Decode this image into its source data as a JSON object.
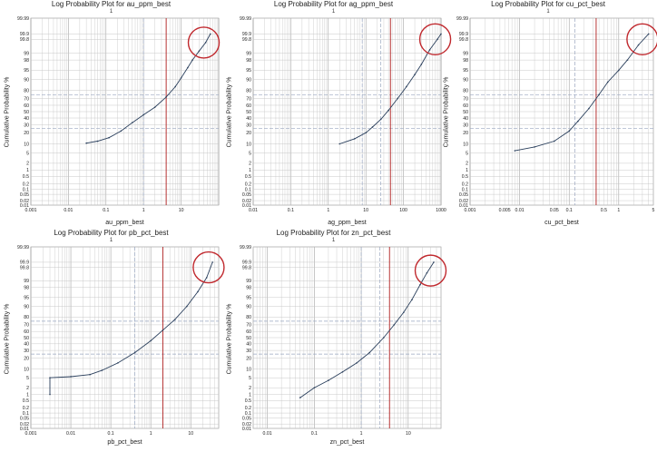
{
  "chart_data": [
    {
      "type": "line",
      "title": "Log Probability Plot for au_ppm_best",
      "subtitle": "1",
      "xlabel": "au_ppm_best",
      "ylabel": "Cumulative Probability %",
      "x_scale": "log",
      "y_scale": "probability",
      "xlim": [
        0.001,
        100
      ],
      "ylim": [
        0.01,
        99.99
      ],
      "x_ticks": [
        "0.001",
        "0.01",
        "0.1",
        "1",
        "10"
      ],
      "y_ticks": [
        "0.01",
        "0.02",
        "0.05",
        "0.1",
        "0.2",
        "0.5",
        "1",
        "2",
        "5",
        "10",
        "20",
        "30",
        "40",
        "50",
        "60",
        "70",
        "80",
        "90",
        "95",
        "98",
        "99",
        "99.8",
        "99.9",
        "99.99"
      ],
      "grid": true,
      "series": [
        {
          "color": "#2a3f5c",
          "points": [
            [
              0.03,
              10.5
            ],
            [
              0.06,
              12
            ],
            [
              0.12,
              15
            ],
            [
              0.25,
              22
            ],
            [
              0.5,
              33
            ],
            [
              1,
              45
            ],
            [
              2,
              57
            ],
            [
              4,
              72
            ],
            [
              7,
              84
            ],
            [
              10,
              91
            ],
            [
              15,
              96
            ],
            [
              20,
              98
            ],
            [
              30,
              99.2
            ],
            [
              45,
              99.7
            ],
            [
              60,
              99.9
            ]
          ]
        }
      ],
      "reference_lines": [
        {
          "orientation": "horizontal",
          "value": 25,
          "style": "dashed",
          "color": "#9aa7c0"
        },
        {
          "orientation": "horizontal",
          "value": 75,
          "style": "dashed",
          "color": "#9aa7c0"
        },
        {
          "orientation": "vertical",
          "value": 1,
          "style": "dashed",
          "color": "#9aa7c0"
        },
        {
          "orientation": "vertical",
          "value": 4,
          "style": "solid",
          "color": "#b02020"
        }
      ],
      "highlight_circle": {
        "x": 40,
        "y": 99.7,
        "color": "#c0282d"
      }
    },
    {
      "type": "line",
      "title": "Log Probability Plot for ag_ppm_best",
      "subtitle": "1",
      "xlabel": "ag_ppm_best",
      "ylabel": "Cumulative Probability %",
      "x_scale": "log",
      "y_scale": "probability",
      "xlim": [
        0.01,
        1000
      ],
      "ylim": [
        0.01,
        99.99
      ],
      "x_ticks": [
        "0.01",
        "0.1",
        "1",
        "10",
        "100",
        "1000"
      ],
      "y_ticks": [
        "0.01",
        "0.02",
        "0.05",
        "0.1",
        "0.2",
        "0.5",
        "1",
        "2",
        "5",
        "10",
        "20",
        "30",
        "40",
        "50",
        "60",
        "70",
        "80",
        "90",
        "95",
        "98",
        "99",
        "99.8",
        "99.9",
        "99.99"
      ],
      "grid": true,
      "series": [
        {
          "color": "#2a3f5c",
          "points": [
            [
              2,
              10
            ],
            [
              5,
              14
            ],
            [
              10,
              20
            ],
            [
              15,
              27
            ],
            [
              25,
              38
            ],
            [
              40,
              52
            ],
            [
              70,
              70
            ],
            [
              120,
              84
            ],
            [
              200,
              93
            ],
            [
              300,
              97
            ],
            [
              500,
              99.3
            ],
            [
              800,
              99.8
            ],
            [
              1000,
              99.9
            ]
          ]
        }
      ],
      "reference_lines": [
        {
          "orientation": "horizontal",
          "value": 25,
          "style": "dashed",
          "color": "#9aa7c0"
        },
        {
          "orientation": "horizontal",
          "value": 75,
          "style": "dashed",
          "color": "#9aa7c0"
        },
        {
          "orientation": "vertical",
          "value": 8,
          "style": "dashed",
          "color": "#9aa7c0"
        },
        {
          "orientation": "vertical",
          "value": 25,
          "style": "dashed",
          "color": "#9aa7c0"
        },
        {
          "orientation": "vertical",
          "value": 45,
          "style": "solid",
          "color": "#b02020"
        }
      ],
      "highlight_circle": {
        "x": 700,
        "y": 99.8,
        "color": "#c0282d"
      }
    },
    {
      "type": "line",
      "title": "Log Probability Plot for cu_pct_best",
      "subtitle": "1",
      "xlabel": "cu_pct_best",
      "ylabel": "Cumulative Probability %",
      "x_scale": "log",
      "y_scale": "probability",
      "xlim": [
        0.001,
        5
      ],
      "ylim": [
        0.01,
        99.99
      ],
      "x_ticks": [
        "0.001",
        "0.005",
        "0.01",
        "0.05",
        "0.1",
        "0.5",
        "1",
        "5"
      ],
      "y_ticks": [
        "0.01",
        "0.02",
        "0.05",
        "0.1",
        "0.2",
        "0.5",
        "1",
        "2",
        "5",
        "10",
        "20",
        "30",
        "40",
        "50",
        "60",
        "70",
        "80",
        "90",
        "95",
        "98",
        "99",
        "99.8",
        "99.9",
        "99.99"
      ],
      "grid": true,
      "series": [
        {
          "color": "#2a3f5c",
          "points": [
            [
              0.008,
              6
            ],
            [
              0.02,
              8
            ],
            [
              0.05,
              12
            ],
            [
              0.1,
              22
            ],
            [
              0.15,
              35
            ],
            [
              0.25,
              55
            ],
            [
              0.4,
              75
            ],
            [
              0.6,
              88
            ],
            [
              1,
              95
            ],
            [
              1.5,
              98
            ],
            [
              2.5,
              99.6
            ],
            [
              4,
              99.9
            ]
          ]
        }
      ],
      "reference_lines": [
        {
          "orientation": "horizontal",
          "value": 25,
          "style": "dashed",
          "color": "#9aa7c0"
        },
        {
          "orientation": "horizontal",
          "value": 75,
          "style": "dashed",
          "color": "#9aa7c0"
        },
        {
          "orientation": "vertical",
          "value": 0.13,
          "style": "dashed",
          "color": "#9aa7c0"
        },
        {
          "orientation": "vertical",
          "value": 0.35,
          "style": "solid",
          "color": "#b02020"
        }
      ],
      "highlight_circle": {
        "x": 3,
        "y": 99.8,
        "color": "#c0282d"
      }
    },
    {
      "type": "line",
      "title": "Log Probability Plot for pb_pct_best",
      "subtitle": "1",
      "xlabel": "pb_pct_best",
      "ylabel": "Cumulative Probability %",
      "x_scale": "log",
      "y_scale": "probability",
      "xlim": [
        0.001,
        50
      ],
      "ylim": [
        0.01,
        99.99
      ],
      "x_ticks": [
        "0.001",
        "0.01",
        "0.1",
        "1",
        "10"
      ],
      "y_ticks": [
        "0.01",
        "0.02",
        "0.05",
        "0.1",
        "0.2",
        "0.5",
        "1",
        "2",
        "5",
        "10",
        "20",
        "30",
        "40",
        "50",
        "60",
        "70",
        "80",
        "90",
        "95",
        "98",
        "99",
        "99.8",
        "99.9",
        "99.99"
      ],
      "grid": true,
      "series": [
        {
          "color": "#2a3f5c",
          "points": [
            [
              0.003,
              1
            ],
            [
              0.003,
              5
            ],
            [
              0.01,
              5.5
            ],
            [
              0.03,
              6.5
            ],
            [
              0.06,
              9
            ],
            [
              0.15,
              15
            ],
            [
              0.4,
              27
            ],
            [
              1,
              45
            ],
            [
              2,
              62
            ],
            [
              4,
              77
            ],
            [
              8,
              90
            ],
            [
              15,
              97
            ],
            [
              25,
              99.3
            ],
            [
              35,
              99.9
            ]
          ]
        }
      ],
      "reference_lines": [
        {
          "orientation": "horizontal",
          "value": 25,
          "style": "dashed",
          "color": "#9aa7c0"
        },
        {
          "orientation": "horizontal",
          "value": 75,
          "style": "dashed",
          "color": "#9aa7c0"
        },
        {
          "orientation": "vertical",
          "value": 0.4,
          "style": "dashed",
          "color": "#9aa7c0"
        },
        {
          "orientation": "vertical",
          "value": 2,
          "style": "solid",
          "color": "#b02020"
        }
      ],
      "highlight_circle": {
        "x": 28,
        "y": 99.8,
        "color": "#c0282d"
      }
    },
    {
      "type": "line",
      "title": "Log Probability Plot for zn_pct_best",
      "subtitle": "1",
      "xlabel": "zn_pct_best",
      "ylabel": "Cumulative Probability %",
      "x_scale": "log",
      "y_scale": "probability",
      "xlim": [
        0.005,
        50
      ],
      "ylim": [
        0.01,
        99.99
      ],
      "x_ticks": [
        "0.01",
        "0.1",
        "1",
        "10"
      ],
      "y_ticks": [
        "0.01",
        "0.02",
        "0.05",
        "0.1",
        "0.2",
        "0.5",
        "1",
        "2",
        "5",
        "10",
        "20",
        "30",
        "40",
        "50",
        "60",
        "70",
        "80",
        "90",
        "95",
        "98",
        "99",
        "99.8",
        "99.9",
        "99.99"
      ],
      "grid": true,
      "series": [
        {
          "color": "#2a3f5c",
          "points": [
            [
              0.05,
              0.7
            ],
            [
              0.1,
              2
            ],
            [
              0.2,
              4
            ],
            [
              0.4,
              8
            ],
            [
              0.8,
              15
            ],
            [
              1.5,
              27
            ],
            [
              3,
              50
            ],
            [
              5,
              70
            ],
            [
              8,
              85
            ],
            [
              12,
              94
            ],
            [
              18,
              98.5
            ],
            [
              25,
              99.6
            ],
            [
              35,
              99.9
            ]
          ]
        }
      ],
      "reference_lines": [
        {
          "orientation": "horizontal",
          "value": 25,
          "style": "dashed",
          "color": "#9aa7c0"
        },
        {
          "orientation": "horizontal",
          "value": 75,
          "style": "dashed",
          "color": "#9aa7c0"
        },
        {
          "orientation": "vertical",
          "value": 1,
          "style": "dashed",
          "color": "#9aa7c0"
        },
        {
          "orientation": "vertical",
          "value": 2.5,
          "style": "dashed",
          "color": "#9aa7c0"
        },
        {
          "orientation": "vertical",
          "value": 4,
          "style": "solid",
          "color": "#b02020"
        }
      ],
      "highlight_circle": {
        "x": 30,
        "y": 99.7,
        "color": "#c0282d"
      }
    }
  ]
}
